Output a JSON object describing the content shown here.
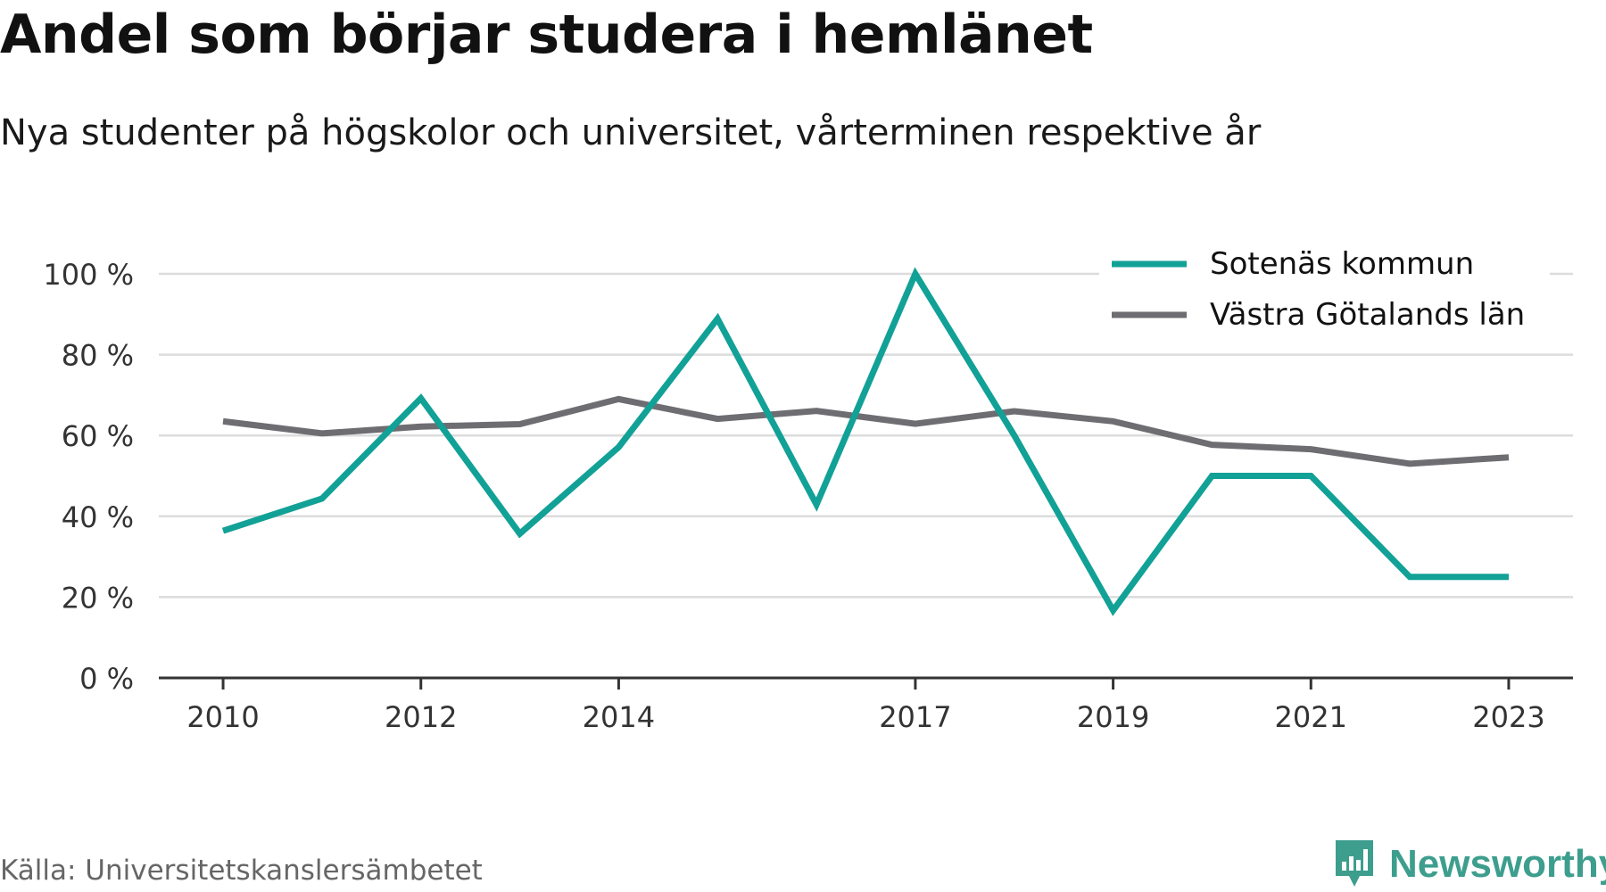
{
  "header": {
    "title": "Andel som börjar studera i hemlänet",
    "subtitle": "Nya studenter på högskolor och universitet, vårterminen respektive år"
  },
  "footer": {
    "source": "Källa: Universitetskanslersämbetet",
    "brand": "Newsworthy",
    "brand_icon": "bar-chart-speech-bubble-icon"
  },
  "chart_data": {
    "type": "line",
    "x": [
      2010,
      2011,
      2012,
      2013,
      2014,
      2015,
      2016,
      2017,
      2018,
      2019,
      2020,
      2021,
      2022,
      2023
    ],
    "x_ticks": [
      2010,
      2012,
      2014,
      2017,
      2019,
      2021,
      2023
    ],
    "x_tick_labels": [
      "2010",
      "2012",
      "2014",
      "2017",
      "2019",
      "2021",
      "2023"
    ],
    "y_ticks": [
      0,
      20,
      40,
      60,
      80,
      100
    ],
    "y_tick_labels": [
      "0 %",
      "20 %",
      "40 %",
      "60 %",
      "80 %",
      "100 %"
    ],
    "ylim": [
      0,
      100
    ],
    "xlim": [
      2009.35,
      2023.65
    ],
    "grid": true,
    "legend_position": "top-right",
    "series": [
      {
        "name": "Sotenäs kommun",
        "color": "#12a196",
        "values": [
          36.4,
          44.4,
          69.2,
          35.7,
          57.1,
          88.9,
          42.9,
          100,
          60,
          16.7,
          50,
          50,
          25,
          25
        ]
      },
      {
        "name": "Västra Götalands län",
        "color": "#6e6d72",
        "values": [
          63.5,
          60.5,
          62.2,
          62.8,
          69.0,
          64.1,
          66.1,
          62.9,
          66.0,
          63.5,
          57.7,
          56.6,
          53.0,
          54.6
        ]
      }
    ]
  }
}
